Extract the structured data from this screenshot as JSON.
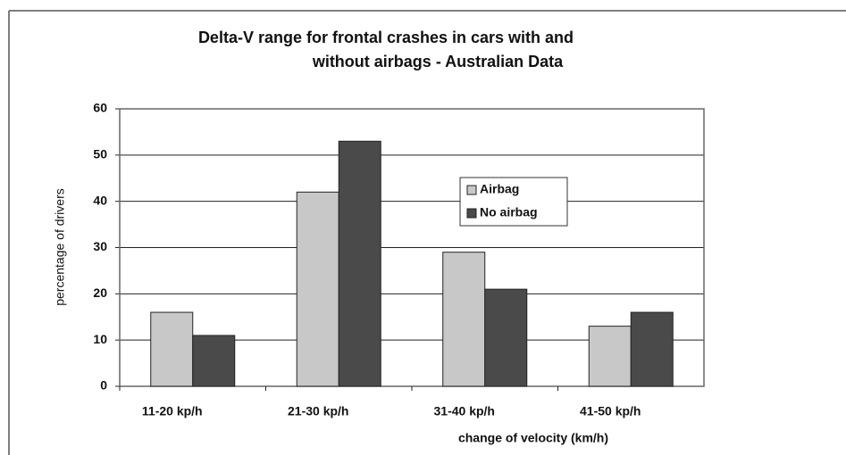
{
  "chart_data": {
    "type": "bar",
    "title": [
      "Delta-V range for frontal crashes in cars with and",
      "without airbags - Australian Data"
    ],
    "x_label": "change of velocity (km/h)",
    "y_label": "percentage of drivers",
    "categories": [
      "11-20 kp/h",
      "21-30 kp/h",
      "31-40 kp/h",
      "41-50 kp/h"
    ],
    "series": [
      {
        "name": "Airbag",
        "color": "#c8c8c8",
        "values": [
          16,
          42,
          29,
          13
        ]
      },
      {
        "name": "No airbag",
        "color": "#4a4a4a",
        "values": [
          11,
          53,
          21,
          16
        ]
      }
    ],
    "ylim": [
      0,
      60
    ],
    "yticks": [
      0,
      10,
      20,
      30,
      40,
      50,
      60
    ],
    "grid": true,
    "legend": "center-right"
  }
}
